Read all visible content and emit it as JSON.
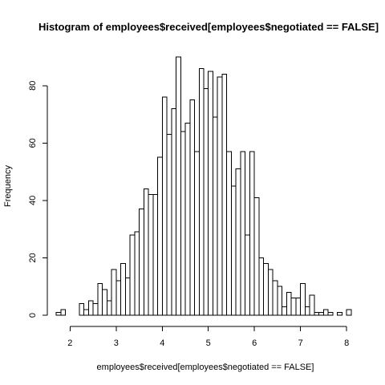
{
  "chart_data": {
    "type": "bar",
    "title": "Histogram of employees$received[employees$negotiated == FALSE]",
    "xlabel": "employees$received[employees$negotiated == FALSE]",
    "ylabel": "Frequency",
    "bin_width": 0.1,
    "x": [
      1.75,
      1.85,
      1.95,
      2.05,
      2.15,
      2.25,
      2.35,
      2.45,
      2.55,
      2.65,
      2.75,
      2.85,
      2.95,
      3.05,
      3.15,
      3.25,
      3.35,
      3.45,
      3.55,
      3.65,
      3.75,
      3.85,
      3.95,
      4.05,
      4.15,
      4.25,
      4.35,
      4.45,
      4.55,
      4.65,
      4.75,
      4.85,
      4.95,
      5.05,
      5.15,
      5.25,
      5.35,
      5.45,
      5.55,
      5.65,
      5.75,
      5.85,
      5.95,
      6.05,
      6.15,
      6.25,
      6.35,
      6.45,
      6.55,
      6.65,
      6.75,
      6.85,
      6.95,
      7.05,
      7.15,
      7.25,
      7.35,
      7.45,
      7.55,
      7.65,
      7.75,
      7.85,
      7.95,
      8.05
    ],
    "values": [
      1,
      2,
      0,
      0,
      0,
      4,
      2,
      5,
      4,
      11,
      9,
      5,
      16,
      12,
      18,
      13,
      28,
      29,
      37,
      44,
      42,
      42,
      55,
      76,
      63,
      72,
      90,
      64,
      67,
      75,
      57,
      86,
      79,
      85,
      69,
      83,
      84,
      57,
      45,
      51,
      57,
      28,
      57,
      41,
      20,
      18,
      16,
      12,
      10,
      3,
      8,
      6,
      6,
      11,
      3,
      7,
      1,
      1,
      2,
      1,
      0,
      1,
      0,
      2
    ],
    "xlim": [
      1.75,
      8.05
    ],
    "ylim": [
      0,
      90
    ],
    "xticks": [
      2,
      3,
      4,
      5,
      6,
      7,
      8
    ],
    "yticks": [
      0,
      20,
      40,
      60,
      80
    ]
  }
}
